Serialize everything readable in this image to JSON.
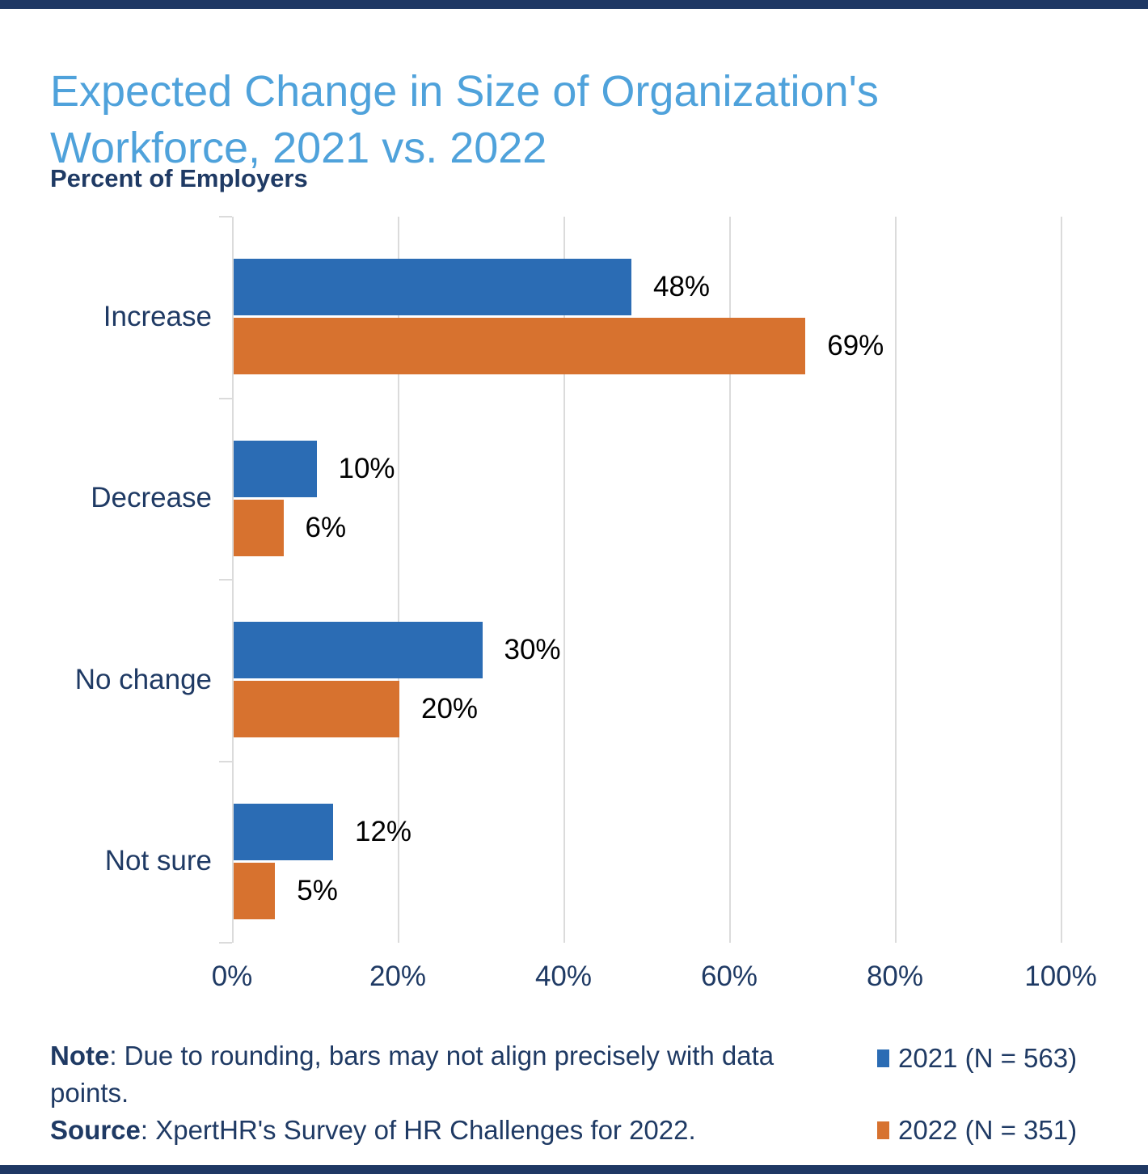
{
  "page": {
    "background": "#FFFFFF",
    "brand_strip_color": "#1F3864"
  },
  "colors": {
    "title_blue": "#4FA2DB",
    "navy_text": "#1F3A64",
    "series_2021_blue": "#2B6CB4",
    "series_2022_orange": "#D7722F",
    "gridline_gray": "#DBDBDB"
  },
  "chart_data": {
    "type": "bar",
    "orientation": "horizontal",
    "title": "Expected Change in Size of Organization's Workforce, 2021 vs. 2022",
    "subtitle": "Percent of Employers",
    "categories": [
      "Increase",
      "Decrease",
      "No change",
      "Not sure"
    ],
    "series": [
      {
        "name": "2021 (N = 563)",
        "color": "#2B6CB4",
        "values": [
          48,
          10,
          30,
          12
        ]
      },
      {
        "name": "2022 (N = 351)",
        "color": "#D7722F",
        "values": [
          69,
          6,
          20,
          5
        ]
      }
    ],
    "value_suffix": "%",
    "xlim": [
      0,
      100
    ],
    "x_ticks": [
      {
        "value": 0,
        "label": "0%"
      },
      {
        "value": 20,
        "label": "20%"
      },
      {
        "value": 40,
        "label": "40%"
      },
      {
        "value": 60,
        "label": "60%"
      },
      {
        "value": 80,
        "label": "80%"
      },
      {
        "value": 100,
        "label": "100%"
      }
    ],
    "grid": true,
    "data_labels": true,
    "legend_position": "bottom-right"
  },
  "footnote": {
    "note_label": "Note",
    "note_text": ": Due to rounding, bars may not align precisely with data points.",
    "source_label": "Source",
    "source_text": ": XpertHR's Survey of HR Challenges for 2022."
  }
}
